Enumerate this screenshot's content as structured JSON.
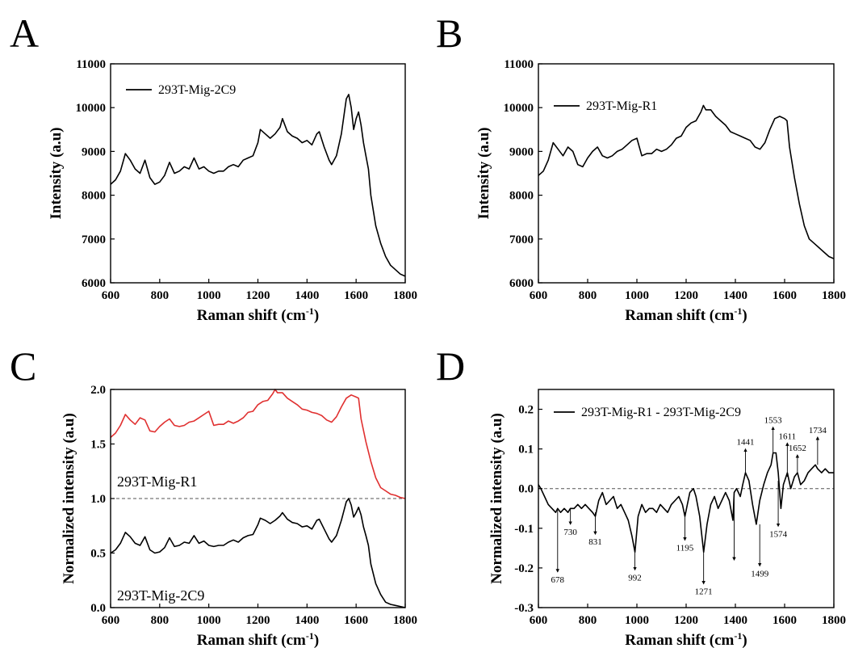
{
  "figure": {
    "panels": [
      "A",
      "B",
      "C",
      "D"
    ]
  },
  "chart_data": [
    {
      "panel": "A",
      "type": "line",
      "xlabel": "Raman shift (cm",
      "xlabel_unit_sup": "-1",
      "ylabel": "Intensity (a.u)",
      "xlim": [
        600,
        1800
      ],
      "ylim": [
        6000,
        11000
      ],
      "xticks": [
        600,
        800,
        1000,
        1200,
        1400,
        1600,
        1800
      ],
      "yticks": [
        6000,
        7000,
        8000,
        9000,
        10000,
        11000
      ],
      "legend": {
        "position": "top-left"
      },
      "series": [
        {
          "name": "293T-Mig-2C9",
          "color": "#000000",
          "x": [
            600,
            620,
            640,
            660,
            680,
            700,
            720,
            740,
            760,
            780,
            800,
            820,
            840,
            860,
            880,
            900,
            920,
            940,
            960,
            980,
            1000,
            1020,
            1040,
            1060,
            1080,
            1100,
            1120,
            1140,
            1160,
            1180,
            1200,
            1210,
            1230,
            1250,
            1270,
            1290,
            1300,
            1320,
            1340,
            1360,
            1380,
            1400,
            1420,
            1440,
            1450,
            1470,
            1490,
            1500,
            1520,
            1540,
            1560,
            1570,
            1580,
            1590,
            1600,
            1610,
            1620,
            1630,
            1640,
            1650,
            1660,
            1680,
            1700,
            1720,
            1740,
            1760,
            1780,
            1800
          ],
          "y": [
            8250,
            8350,
            8550,
            8950,
            8800,
            8600,
            8500,
            8800,
            8400,
            8250,
            8300,
            8450,
            8750,
            8500,
            8550,
            8650,
            8600,
            8850,
            8600,
            8650,
            8550,
            8500,
            8550,
            8550,
            8650,
            8700,
            8650,
            8800,
            8850,
            8900,
            9200,
            9500,
            9400,
            9300,
            9400,
            9550,
            9750,
            9450,
            9350,
            9300,
            9200,
            9250,
            9150,
            9400,
            9450,
            9100,
            8800,
            8700,
            8900,
            9400,
            10200,
            10300,
            10000,
            9500,
            9750,
            9900,
            9600,
            9200,
            8900,
            8600,
            8000,
            7300,
            6900,
            6600,
            6400,
            6300,
            6200,
            6150
          ]
        }
      ]
    },
    {
      "panel": "B",
      "type": "line",
      "xlabel": "Raman shift (cm",
      "xlabel_unit_sup": "-1",
      "ylabel": "Intensity (a.u)",
      "xlim": [
        600,
        1800
      ],
      "ylim": [
        6000,
        11000
      ],
      "xticks": [
        600,
        800,
        1000,
        1200,
        1400,
        1600,
        1800
      ],
      "yticks": [
        6000,
        7000,
        8000,
        9000,
        10000,
        11000
      ],
      "legend": {
        "position": "top-left"
      },
      "series": [
        {
          "name": "293T-Mig-R1",
          "color": "#000000",
          "x": [
            600,
            620,
            640,
            660,
            680,
            700,
            720,
            740,
            760,
            780,
            800,
            820,
            840,
            860,
            880,
            900,
            920,
            940,
            960,
            980,
            1000,
            1020,
            1040,
            1060,
            1080,
            1100,
            1120,
            1140,
            1160,
            1180,
            1200,
            1220,
            1240,
            1260,
            1270,
            1280,
            1300,
            1320,
            1340,
            1360,
            1380,
            1400,
            1420,
            1440,
            1460,
            1480,
            1500,
            1520,
            1540,
            1560,
            1580,
            1600,
            1610,
            1620,
            1640,
            1660,
            1680,
            1700,
            1720,
            1740,
            1760,
            1780,
            1800
          ],
          "y": [
            8450,
            8550,
            8800,
            9200,
            9050,
            8900,
            9100,
            9000,
            8700,
            8650,
            8850,
            9000,
            9100,
            8900,
            8850,
            8900,
            9000,
            9050,
            9150,
            9250,
            9300,
            8900,
            8950,
            8950,
            9050,
            9000,
            9050,
            9150,
            9300,
            9350,
            9550,
            9650,
            9700,
            9900,
            10050,
            9950,
            9950,
            9800,
            9700,
            9600,
            9450,
            9400,
            9350,
            9300,
            9250,
            9100,
            9050,
            9200,
            9500,
            9750,
            9800,
            9750,
            9700,
            9100,
            8400,
            7800,
            7300,
            7000,
            6900,
            6800,
            6700,
            6600,
            6550
          ]
        }
      ]
    },
    {
      "panel": "C",
      "type": "line",
      "xlabel": "Raman shift (cm",
      "xlabel_unit_sup": "-1",
      "ylabel": "Normalized intensity (a.u)",
      "xlim": [
        600,
        1800
      ],
      "ylim": [
        0.0,
        2.0
      ],
      "xticks": [
        600,
        800,
        1000,
        1200,
        1400,
        1600,
        1800
      ],
      "yticks": [
        "0.0",
        "0.5",
        "1.0",
        "1.5",
        "2.0"
      ],
      "reference_line": {
        "y": 1.0,
        "style": "dashed"
      },
      "series": [
        {
          "name": "293T-Mig-R1",
          "color": "#e03030",
          "x": [
            600,
            620,
            640,
            660,
            680,
            700,
            720,
            740,
            760,
            780,
            800,
            820,
            840,
            860,
            880,
            900,
            920,
            940,
            960,
            980,
            1000,
            1020,
            1040,
            1060,
            1080,
            1100,
            1120,
            1140,
            1160,
            1180,
            1200,
            1220,
            1240,
            1260,
            1270,
            1280,
            1300,
            1320,
            1340,
            1360,
            1380,
            1400,
            1420,
            1440,
            1460,
            1480,
            1500,
            1520,
            1540,
            1560,
            1580,
            1600,
            1610,
            1620,
            1640,
            1660,
            1680,
            1700,
            1720,
            1740,
            1760,
            1780,
            1800
          ],
          "y": [
            1.56,
            1.6,
            1.67,
            1.77,
            1.72,
            1.68,
            1.74,
            1.72,
            1.62,
            1.61,
            1.66,
            1.7,
            1.73,
            1.67,
            1.66,
            1.67,
            1.7,
            1.71,
            1.74,
            1.77,
            1.8,
            1.67,
            1.68,
            1.68,
            1.71,
            1.69,
            1.71,
            1.74,
            1.79,
            1.8,
            1.86,
            1.89,
            1.9,
            1.96,
            2.0,
            1.97,
            1.97,
            1.92,
            1.89,
            1.86,
            1.82,
            1.81,
            1.79,
            1.78,
            1.76,
            1.72,
            1.7,
            1.75,
            1.84,
            1.92,
            1.95,
            1.93,
            1.92,
            1.73,
            1.52,
            1.34,
            1.19,
            1.1,
            1.07,
            1.04,
            1.03,
            1.01,
            1.0
          ]
        },
        {
          "name": "293T-Mig-2C9",
          "color": "#000000",
          "x": [
            600,
            620,
            640,
            660,
            680,
            700,
            720,
            740,
            760,
            780,
            800,
            820,
            840,
            860,
            880,
            900,
            920,
            940,
            960,
            980,
            1000,
            1020,
            1040,
            1060,
            1080,
            1100,
            1120,
            1140,
            1160,
            1180,
            1200,
            1210,
            1230,
            1250,
            1270,
            1290,
            1300,
            1320,
            1340,
            1360,
            1380,
            1400,
            1420,
            1440,
            1450,
            1470,
            1490,
            1500,
            1520,
            1540,
            1560,
            1570,
            1580,
            1590,
            1600,
            1610,
            1620,
            1630,
            1640,
            1650,
            1660,
            1680,
            1700,
            1720,
            1740,
            1760,
            1780,
            1800
          ],
          "y": [
            0.5,
            0.53,
            0.59,
            0.69,
            0.65,
            0.59,
            0.57,
            0.65,
            0.53,
            0.5,
            0.51,
            0.55,
            0.64,
            0.56,
            0.57,
            0.6,
            0.59,
            0.66,
            0.59,
            0.61,
            0.57,
            0.56,
            0.57,
            0.57,
            0.6,
            0.62,
            0.6,
            0.64,
            0.66,
            0.67,
            0.76,
            0.82,
            0.8,
            0.77,
            0.8,
            0.84,
            0.87,
            0.81,
            0.78,
            0.77,
            0.74,
            0.75,
            0.72,
            0.8,
            0.81,
            0.72,
            0.63,
            0.6,
            0.66,
            0.8,
            0.97,
            1.0,
            0.94,
            0.83,
            0.87,
            0.92,
            0.85,
            0.74,
            0.66,
            0.57,
            0.4,
            0.22,
            0.12,
            0.05,
            0.03,
            0.02,
            0.01,
            0.0
          ]
        }
      ]
    },
    {
      "panel": "D",
      "type": "line",
      "xlabel": "Raman shift (cm",
      "xlabel_unit_sup": "-1",
      "ylabel": "Normalized intensity (a.u)",
      "xlim": [
        600,
        1800
      ],
      "ylim": [
        -0.3,
        0.25
      ],
      "xticks": [
        600,
        800,
        1000,
        1200,
        1400,
        1600,
        1800
      ],
      "yticks": [
        "-0.3",
        "-0.2",
        "-0.1",
        "0.0",
        "0.1",
        "0.2"
      ],
      "legend": {
        "position": "top-left"
      },
      "reference_line": {
        "y": 0.0,
        "style": "dashed"
      },
      "series": [
        {
          "name": "293T-Mig-R1 - 293T-Mig-2C9",
          "color": "#000000",
          "x": [
            600,
            610,
            625,
            640,
            655,
            670,
            678,
            690,
            705,
            720,
            730,
            745,
            760,
            775,
            790,
            805,
            820,
            831,
            845,
            860,
            875,
            890,
            905,
            920,
            935,
            950,
            965,
            980,
            992,
            1005,
            1020,
            1035,
            1050,
            1065,
            1080,
            1095,
            1110,
            1125,
            1140,
            1155,
            1170,
            1185,
            1195,
            1205,
            1215,
            1230,
            1240,
            1255,
            1271,
            1285,
            1300,
            1315,
            1330,
            1345,
            1360,
            1375,
            1390,
            1395,
            1405,
            1420,
            1430,
            1441,
            1455,
            1470,
            1485,
            1499,
            1515,
            1530,
            1545,
            1553,
            1565,
            1574,
            1585,
            1595,
            1611,
            1625,
            1640,
            1652,
            1665,
            1680,
            1695,
            1710,
            1725,
            1734,
            1750,
            1765,
            1780,
            1800
          ],
          "y": [
            0.01,
            0.0,
            -0.02,
            -0.04,
            -0.05,
            -0.06,
            -0.05,
            -0.06,
            -0.05,
            -0.06,
            -0.05,
            -0.05,
            -0.04,
            -0.05,
            -0.04,
            -0.05,
            -0.06,
            -0.07,
            -0.03,
            -0.01,
            -0.04,
            -0.03,
            -0.02,
            -0.05,
            -0.04,
            -0.06,
            -0.08,
            -0.12,
            -0.16,
            -0.07,
            -0.04,
            -0.06,
            -0.05,
            -0.05,
            -0.06,
            -0.04,
            -0.05,
            -0.06,
            -0.04,
            -0.03,
            -0.02,
            -0.04,
            -0.07,
            -0.04,
            -0.01,
            0.0,
            -0.02,
            -0.07,
            -0.16,
            -0.09,
            -0.04,
            -0.02,
            -0.05,
            -0.03,
            -0.01,
            -0.03,
            -0.08,
            -0.01,
            0.0,
            -0.02,
            0.01,
            0.04,
            0.02,
            -0.04,
            -0.09,
            -0.03,
            0.01,
            0.04,
            0.06,
            0.09,
            0.09,
            0.04,
            -0.05,
            0.01,
            0.04,
            0.0,
            0.03,
            0.04,
            0.01,
            0.02,
            0.04,
            0.05,
            0.06,
            0.05,
            0.04,
            0.05,
            0.04,
            0.04
          ]
        }
      ],
      "annotations": [
        {
          "label": "678",
          "x": 678,
          "direction": "down",
          "y_from": -0.05,
          "y_to": -0.21
        },
        {
          "label": "730",
          "x": 730,
          "direction": "down",
          "y_from": -0.05,
          "y_to": -0.09
        },
        {
          "label": "831",
          "x": 831,
          "direction": "down",
          "y_from": -0.06,
          "y_to": -0.115
        },
        {
          "label": "992",
          "x": 992,
          "direction": "down",
          "y_from": -0.15,
          "y_to": -0.205
        },
        {
          "label": "1195",
          "x": 1195,
          "direction": "down",
          "y_from": -0.06,
          "y_to": -0.13
        },
        {
          "label": "1271",
          "x": 1271,
          "direction": "down",
          "y_from": -0.16,
          "y_to": -0.24
        },
        {
          "label": "",
          "x": 1395,
          "direction": "down",
          "y_from": -0.01,
          "y_to": -0.18
        },
        {
          "label": "1499",
          "x": 1499,
          "direction": "down",
          "y_from": -0.09,
          "y_to": -0.195
        },
        {
          "label": "1574",
          "x": 1574,
          "direction": "down",
          "y_from": 0.02,
          "y_to": -0.095
        },
        {
          "label": "1441",
          "x": 1441,
          "direction": "up",
          "y_from": 0.04,
          "y_to": 0.1
        },
        {
          "label": "1553",
          "x": 1553,
          "direction": "up",
          "y_from": 0.09,
          "y_to": 0.155
        },
        {
          "label": "1611",
          "x": 1611,
          "direction": "up",
          "y_from": 0.03,
          "y_to": 0.115
        },
        {
          "label": "1652",
          "x": 1652,
          "direction": "up",
          "y_from": 0.04,
          "y_to": 0.085
        },
        {
          "label": "1734",
          "x": 1734,
          "direction": "up",
          "y_from": 0.06,
          "y_to": 0.13
        }
      ]
    }
  ]
}
